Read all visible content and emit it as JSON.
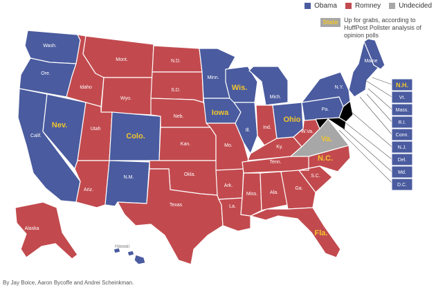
{
  "legend": {
    "items": [
      {
        "label": "Obama",
        "color": "#4a5b9f"
      },
      {
        "label": "Romney",
        "color": "#c24a4e"
      },
      {
        "label": "Undecided",
        "color": "#a7a7a7"
      }
    ]
  },
  "tossup_key": {
    "tag": "State",
    "note": "Up for grabs, according to HuffPost Pollster analysis of opinion polls"
  },
  "colors": {
    "obama": "#4a5b9f",
    "romney": "#c24a4e",
    "undecided": "#a7a7a7",
    "tossup_label": "#f2c62d"
  },
  "states": {
    "wa": {
      "label": "Wash.",
      "winner": "obama"
    },
    "or": {
      "label": "Ore.",
      "winner": "obama"
    },
    "ca": {
      "label": "Calif.",
      "winner": "obama"
    },
    "nv": {
      "label": "Nev.",
      "winner": "obama",
      "tossup": true
    },
    "id": {
      "label": "Idaho",
      "winner": "romney"
    },
    "mt": {
      "label": "Mont.",
      "winner": "romney"
    },
    "wy": {
      "label": "Wyo.",
      "winner": "romney"
    },
    "ut": {
      "label": "Utah",
      "winner": "romney"
    },
    "co": {
      "label": "Colo.",
      "winner": "obama",
      "tossup": true
    },
    "az": {
      "label": "Ariz.",
      "winner": "romney"
    },
    "nm": {
      "label": "N.M.",
      "winner": "obama"
    },
    "nd": {
      "label": "N.D.",
      "winner": "romney"
    },
    "sd": {
      "label": "S.D.",
      "winner": "romney"
    },
    "ne": {
      "label": "Neb.",
      "winner": "romney"
    },
    "ks": {
      "label": "Kan.",
      "winner": "romney"
    },
    "ok": {
      "label": "Okla.",
      "winner": "romney"
    },
    "tx": {
      "label": "Texas",
      "winner": "romney"
    },
    "mn": {
      "label": "Minn.",
      "winner": "obama"
    },
    "ia": {
      "label": "Iowa",
      "winner": "obama",
      "tossup": true
    },
    "mo": {
      "label": "Mo.",
      "winner": "romney"
    },
    "ar": {
      "label": "Ark.",
      "winner": "romney"
    },
    "la": {
      "label": "La.",
      "winner": "romney"
    },
    "wi": {
      "label": "Wis.",
      "winner": "obama",
      "tossup": true
    },
    "il": {
      "label": "Ill.",
      "winner": "obama"
    },
    "mi": {
      "label": "Mich.",
      "winner": "obama"
    },
    "in": {
      "label": "Ind.",
      "winner": "romney"
    },
    "oh": {
      "label": "Ohio",
      "winner": "obama",
      "tossup": true
    },
    "ky": {
      "label": "Ky.",
      "winner": "romney"
    },
    "tn": {
      "label": "Tenn.",
      "winner": "romney"
    },
    "ms": {
      "label": "Miss.",
      "winner": "romney"
    },
    "al": {
      "label": "Ala.",
      "winner": "romney"
    },
    "ga": {
      "label": "Ga.",
      "winner": "romney"
    },
    "fl": {
      "label": "Fla.",
      "winner": "romney",
      "tossup": true
    },
    "sc": {
      "label": "S.C.",
      "winner": "romney"
    },
    "nc": {
      "label": "N.C.",
      "winner": "romney",
      "tossup": true
    },
    "va": {
      "label": "Va.",
      "winner": "undecided",
      "tossup": true
    },
    "wv": {
      "label": "W.Va.",
      "winner": "romney"
    },
    "pa": {
      "label": "Pa.",
      "winner": "obama"
    },
    "ny": {
      "label": "N.Y.",
      "winner": "obama"
    },
    "me": {
      "label": "Maine",
      "winner": "obama"
    },
    "ak": {
      "label": "Alaska",
      "winner": "romney"
    },
    "hi": {
      "label": "Hawaii",
      "winner": "obama"
    }
  },
  "northeast_boxes": [
    {
      "label": "N.H.",
      "tossup": true
    },
    {
      "label": "Vt."
    },
    {
      "label": "Mass."
    },
    {
      "label": "R.I."
    },
    {
      "label": "Conn."
    },
    {
      "label": "N.J."
    },
    {
      "label": "Del."
    },
    {
      "label": "Md."
    },
    {
      "label": "D.C."
    }
  ],
  "credit": "By Jay Boice, Aaron Bycoffe and Andrei Scheinkman."
}
